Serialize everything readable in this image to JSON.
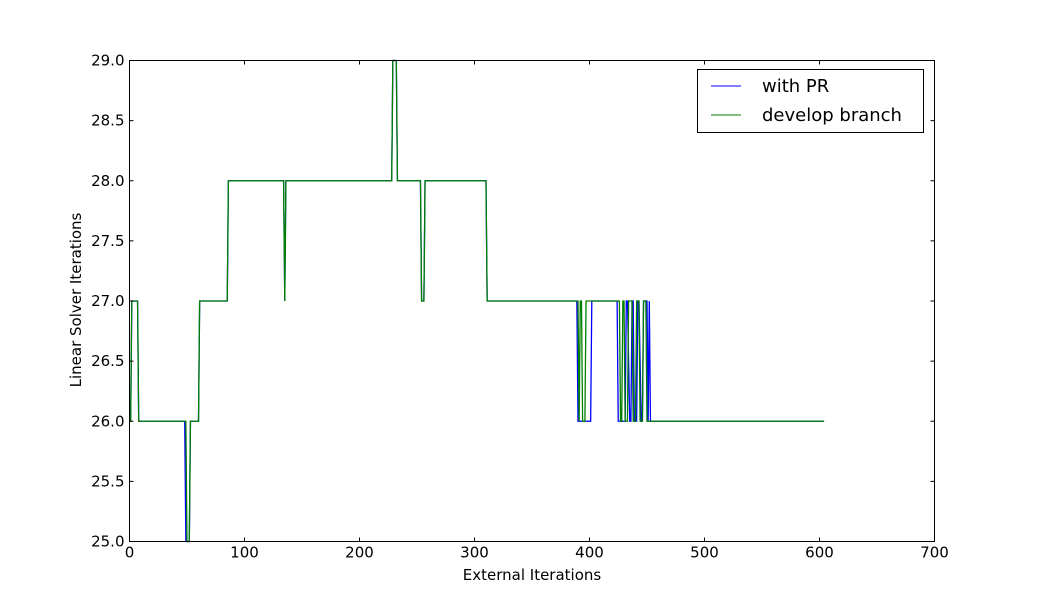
{
  "chart_data": {
    "type": "line",
    "title": "",
    "xlabel": "External Iterations",
    "ylabel": "Linear Solver Iterations",
    "xlim": [
      0,
      700
    ],
    "ylim": [
      25.0,
      29.0
    ],
    "xticks": [
      0,
      100,
      200,
      300,
      400,
      500,
      600,
      700
    ],
    "xtick_labels": [
      "0",
      "100",
      "200",
      "300",
      "400",
      "500",
      "600",
      "700"
    ],
    "yticks": [
      25.0,
      25.5,
      26.0,
      26.5,
      27.0,
      27.5,
      28.0,
      28.5,
      29.0
    ],
    "ytick_labels": [
      "25.0",
      "25.5",
      "26.0",
      "26.5",
      "27.0",
      "27.5",
      "28.0",
      "28.5",
      "29.0"
    ],
    "grid": false,
    "legend": "top-right",
    "series": [
      {
        "name": "with PR",
        "color": "#0000ff",
        "x": [
          0,
          1,
          2,
          3,
          4,
          5,
          6,
          7,
          8,
          9,
          48,
          49,
          50,
          51,
          52,
          53,
          54,
          60,
          61,
          85,
          86,
          134,
          135,
          136,
          228,
          229,
          230,
          231,
          232,
          233,
          234,
          253,
          254,
          256,
          257,
          258,
          310,
          311,
          389,
          390,
          400,
          401,
          402,
          404,
          424,
          425,
          431,
          432,
          433,
          435,
          436,
          437,
          438,
          439,
          441,
          442,
          443,
          445,
          446,
          447,
          450,
          451,
          452,
          453,
          454,
          604
        ],
        "y": [
          26,
          26,
          27,
          27,
          27,
          27,
          27,
          27,
          26,
          26,
          26,
          25,
          25,
          25,
          25,
          26,
          26,
          26,
          27,
          27,
          28,
          28,
          27,
          28,
          28,
          29,
          29,
          29,
          29,
          28,
          28,
          28,
          27,
          27,
          28,
          28,
          28,
          27,
          27,
          26,
          26,
          26,
          27,
          27,
          27,
          26,
          26,
          27,
          27,
          26,
          26,
          27,
          27,
          26,
          26,
          27,
          27,
          26,
          26,
          27,
          27,
          26,
          27,
          26,
          26,
          26
        ]
      },
      {
        "name": "develop branch",
        "color": "#008000",
        "x": [
          0,
          1,
          2,
          3,
          4,
          5,
          6,
          7,
          8,
          9,
          48,
          49,
          50,
          51,
          52,
          53,
          54,
          60,
          61,
          85,
          86,
          134,
          135,
          136,
          228,
          229,
          230,
          231,
          232,
          233,
          234,
          253,
          254,
          256,
          257,
          258,
          310,
          311,
          389,
          390,
          391,
          392,
          393,
          394,
          395,
          396,
          397,
          398,
          399,
          400,
          426,
          427,
          428,
          429,
          430,
          431,
          432,
          433,
          434,
          435,
          436,
          437,
          438,
          439,
          440,
          441,
          442,
          443,
          444,
          445,
          446,
          447,
          448,
          449,
          450,
          451,
          452,
          453,
          454,
          604
        ],
        "y": [
          26,
          26,
          27,
          27,
          27,
          27,
          27,
          27,
          26,
          26,
          26,
          26,
          25,
          25,
          25,
          26,
          26,
          26,
          27,
          27,
          28,
          28,
          27,
          28,
          28,
          29,
          29,
          29,
          29,
          28,
          28,
          28,
          27,
          27,
          28,
          28,
          28,
          27,
          27,
          27,
          26,
          27,
          27,
          26,
          26,
          26,
          27,
          27,
          27,
          27,
          27,
          26,
          26,
          27,
          27,
          26,
          26,
          26,
          27,
          27,
          27,
          27,
          26,
          26,
          26,
          27,
          27,
          27,
          26,
          26,
          26,
          27,
          27,
          27,
          26,
          26,
          26,
          26,
          26,
          26
        ]
      }
    ]
  }
}
